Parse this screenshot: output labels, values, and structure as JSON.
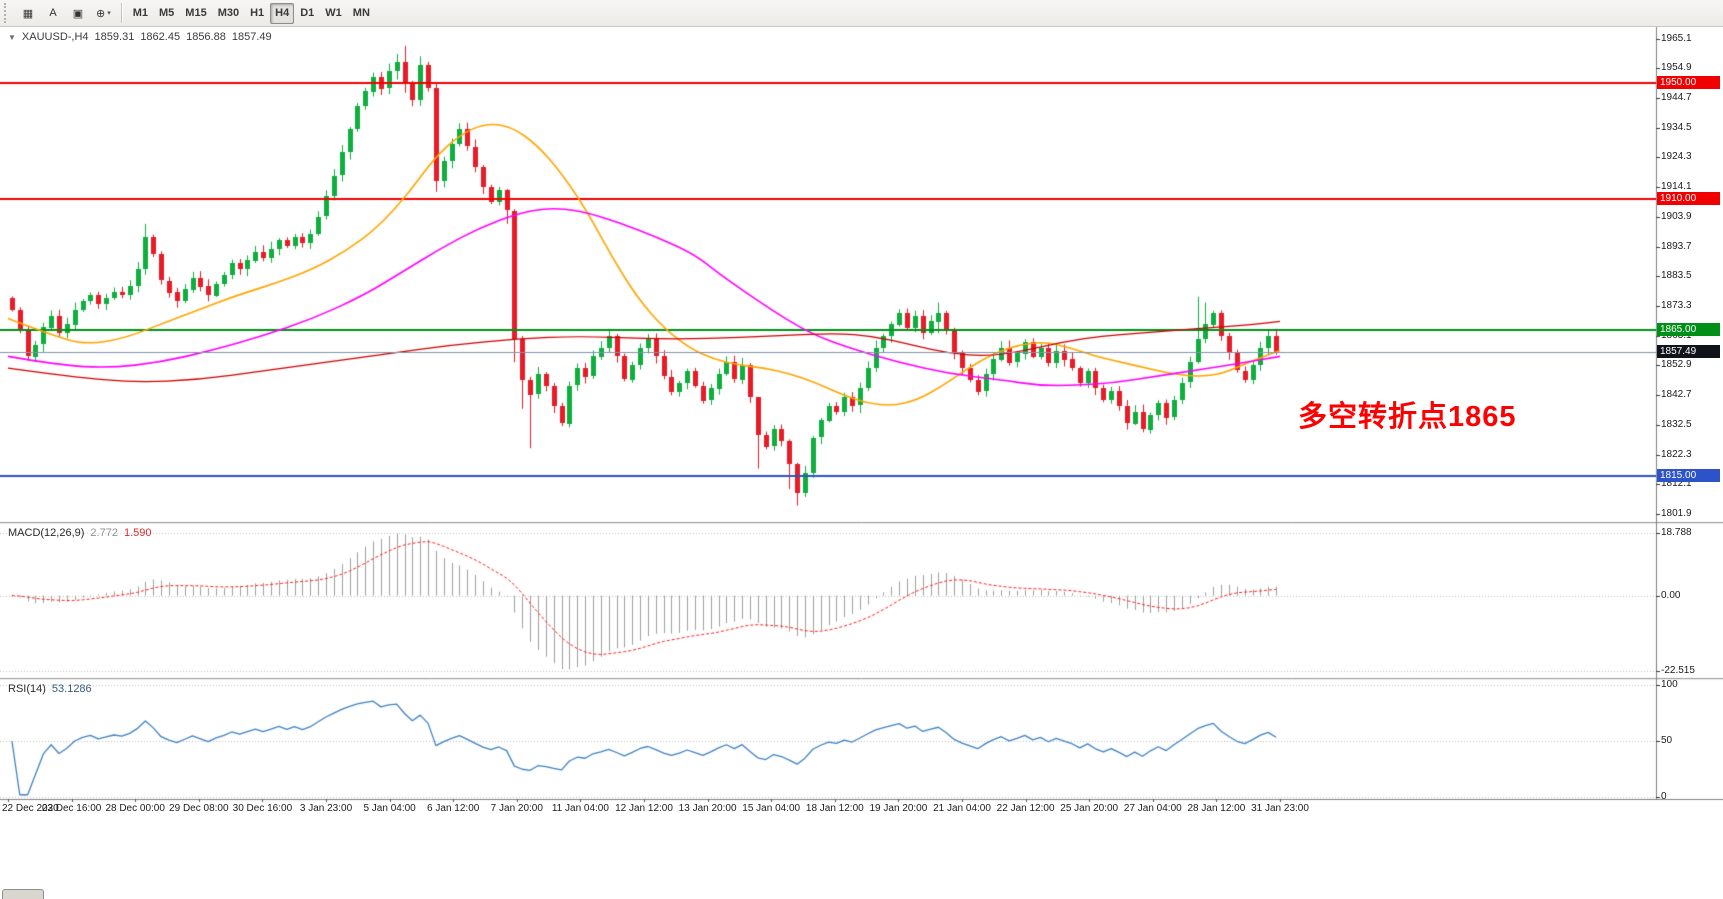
{
  "icons": {
    "collapse": "▼"
  },
  "toolbar": {
    "tools": [
      {
        "name": "chart-type-button",
        "glyph": "▦"
      },
      {
        "name": "text-annotation-button",
        "glyph": "A"
      },
      {
        "name": "object-frame-button",
        "glyph": "▣"
      },
      {
        "name": "cursor-tools-button",
        "glyph": "⊕",
        "caret": "▾"
      }
    ],
    "timeframes": [
      "M1",
      "M5",
      "M15",
      "M30",
      "H1",
      "H4",
      "D1",
      "W1",
      "MN"
    ],
    "active_timeframe": "H4"
  },
  "chart": {
    "title": {
      "symbol": "XAUUSD-,H4",
      "open": "1859.31",
      "high": "1862.45",
      "low": "1856.88",
      "close": "1857.49"
    },
    "annotation": {
      "text": "多空转折点1865",
      "color": "#ff0000"
    }
  },
  "macd_panel": {
    "name": "MACD(12,26,9)",
    "main": "2.772",
    "signal": "1.590",
    "axis": [
      "18.788",
      "0.00",
      "-22.515"
    ]
  },
  "rsi_panel": {
    "name": "RSI(14)",
    "value": "53.1286",
    "axis": [
      "100",
      "50",
      "0"
    ]
  },
  "colors": {
    "candle_up": "#0fae3f",
    "candle_down": "#e81c27",
    "macd_histogram": "#a0a0a0",
    "macd_signal": "#ff2020",
    "rsi_line": "#3e82c4",
    "bid_line": "#8194ad",
    "bid_label_bg": "#10131a",
    "annotation": "#ff0000"
  },
  "chart_data": {
    "type": "candlestick",
    "symbol": "XAUUSD",
    "timeframe": "H4",
    "first_open": 1876,
    "closes": [
      1872,
      1865,
      1856,
      1860,
      1866,
      1870,
      1864,
      1867,
      1872,
      1875,
      1877,
      1874,
      1876,
      1878,
      1877,
      1880,
      1886,
      1897,
      1891,
      1882,
      1878,
      1875,
      1879,
      1883,
      1880,
      1877,
      1881,
      1884,
      1888,
      1886,
      1889,
      1892,
      1890,
      1893,
      1896,
      1894,
      1897,
      1895,
      1898,
      1904,
      1911,
      1918,
      1926,
      1934,
      1942,
      1947,
      1952,
      1948,
      1954,
      1957,
      1950,
      1944,
      1956,
      1948,
      1916,
      1923,
      1929,
      1934,
      1928,
      1921,
      1914,
      1909,
      1913,
      1906,
      1862,
      1848,
      1843,
      1850,
      1846,
      1839,
      1833,
      1846,
      1852,
      1849,
      1856,
      1859,
      1863,
      1856,
      1848,
      1853,
      1859,
      1862,
      1856,
      1849,
      1844,
      1847,
      1851,
      1846,
      1841,
      1845,
      1850,
      1854,
      1848,
      1853,
      1842,
      1829,
      1825,
      1831,
      1827,
      1819,
      1809,
      1816,
      1828,
      1834,
      1839,
      1837,
      1842,
      1839,
      1845,
      1852,
      1859,
      1863,
      1867,
      1871,
      1866,
      1870,
      1864,
      1868,
      1871,
      1865,
      1857,
      1852,
      1848,
      1844,
      1850,
      1855,
      1859,
      1854,
      1857,
      1861,
      1856,
      1859,
      1854,
      1858,
      1855,
      1852,
      1847,
      1851,
      1845,
      1841,
      1844,
      1839,
      1833,
      1837,
      1831,
      1836,
      1840,
      1835,
      1841,
      1847,
      1854,
      1862,
      1867,
      1871,
      1863,
      1857,
      1851,
      1848,
      1853,
      1859,
      1863,
      1857.49
    ],
    "wick_overrides": {
      "17": [
        1901.5,
        1884
      ],
      "48": [
        1956.5,
        1946
      ],
      "49": [
        1959.8,
        1951
      ],
      "50": [
        1962.6,
        1946.5
      ],
      "52": [
        1959.0,
        1942
      ],
      "54": [
        1949.5,
        1912.5
      ],
      "63": [
        1913.5,
        1901.5
      ],
      "64": [
        1906.5,
        1854
      ],
      "65": [
        1863,
        1838
      ],
      "66": [
        1849,
        1824.5
      ],
      "95": [
        1831.5,
        1817.5
      ],
      "99": [
        1827.5,
        1810.5
      ],
      "100": [
        1819.5,
        1804.8
      ],
      "118": [
        1874.5,
        1864
      ],
      "151": [
        1876.5,
        1853.5
      ],
      "152": [
        1874.5,
        1860.5
      ]
    },
    "moving_averages": [
      {
        "name": "ma-fast",
        "color": "#FFA500",
        "points": [
          [
            0.0,
            1869
          ],
          [
            0.03,
            1864
          ],
          [
            0.06,
            1860
          ],
          [
            0.09,
            1862
          ],
          [
            0.12,
            1867
          ],
          [
            0.15,
            1872
          ],
          [
            0.18,
            1877
          ],
          [
            0.21,
            1881
          ],
          [
            0.24,
            1886
          ],
          [
            0.265,
            1892
          ],
          [
            0.29,
            1900
          ],
          [
            0.315,
            1912
          ],
          [
            0.335,
            1924
          ],
          [
            0.355,
            1932
          ],
          [
            0.375,
            1936
          ],
          [
            0.395,
            1935
          ],
          [
            0.415,
            1929
          ],
          [
            0.435,
            1919
          ],
          [
            0.455,
            1906
          ],
          [
            0.475,
            1890
          ],
          [
            0.495,
            1876
          ],
          [
            0.515,
            1866
          ],
          [
            0.535,
            1859
          ],
          [
            0.555,
            1855
          ],
          [
            0.575,
            1853
          ],
          [
            0.595,
            1852
          ],
          [
            0.615,
            1850
          ],
          [
            0.635,
            1847
          ],
          [
            0.655,
            1843
          ],
          [
            0.675,
            1840
          ],
          [
            0.695,
            1839
          ],
          [
            0.715,
            1841
          ],
          [
            0.735,
            1846
          ],
          [
            0.755,
            1852
          ],
          [
            0.775,
            1857
          ],
          [
            0.795,
            1860
          ],
          [
            0.815,
            1861
          ],
          [
            0.835,
            1859
          ],
          [
            0.855,
            1856
          ],
          [
            0.875,
            1854
          ],
          [
            0.895,
            1852
          ],
          [
            0.915,
            1850
          ],
          [
            0.935,
            1849
          ],
          [
            0.955,
            1850
          ],
          [
            0.975,
            1854
          ],
          [
            1.0,
            1858
          ]
        ]
      },
      {
        "name": "ma-mid",
        "color": "#FF00FF",
        "points": [
          [
            0.0,
            1856
          ],
          [
            0.04,
            1853
          ],
          [
            0.08,
            1852
          ],
          [
            0.12,
            1854
          ],
          [
            0.16,
            1858
          ],
          [
            0.2,
            1863
          ],
          [
            0.24,
            1869
          ],
          [
            0.28,
            1877
          ],
          [
            0.31,
            1885
          ],
          [
            0.34,
            1893
          ],
          [
            0.37,
            1900
          ],
          [
            0.4,
            1905
          ],
          [
            0.425,
            1907
          ],
          [
            0.45,
            1906
          ],
          [
            0.48,
            1902
          ],
          [
            0.51,
            1897
          ],
          [
            0.54,
            1891
          ],
          [
            0.56,
            1884
          ],
          [
            0.6,
            1872
          ],
          [
            0.63,
            1864
          ],
          [
            0.66,
            1859
          ],
          [
            0.7,
            1854
          ],
          [
            0.74,
            1850
          ],
          [
            0.78,
            1848
          ],
          [
            0.81,
            1846
          ],
          [
            0.84,
            1846
          ],
          [
            0.87,
            1847
          ],
          [
            0.9,
            1849
          ],
          [
            0.93,
            1851
          ],
          [
            0.96,
            1853
          ],
          [
            1.0,
            1856
          ]
        ]
      },
      {
        "name": "ma-slow",
        "color": "#D00000",
        "points": [
          [
            0.0,
            1852
          ],
          [
            0.05,
            1849
          ],
          [
            0.1,
            1847
          ],
          [
            0.15,
            1848
          ],
          [
            0.2,
            1851
          ],
          [
            0.25,
            1854
          ],
          [
            0.3,
            1857
          ],
          [
            0.35,
            1860
          ],
          [
            0.4,
            1862
          ],
          [
            0.45,
            1863
          ],
          [
            0.5,
            1862
          ],
          [
            0.55,
            1862
          ],
          [
            0.6,
            1863
          ],
          [
            0.65,
            1864
          ],
          [
            0.68,
            1863
          ],
          [
            0.71,
            1860
          ],
          [
            0.74,
            1857
          ],
          [
            0.77,
            1856
          ],
          [
            0.8,
            1858
          ],
          [
            0.83,
            1861
          ],
          [
            0.86,
            1863
          ],
          [
            0.89,
            1864
          ],
          [
            0.92,
            1865
          ],
          [
            0.95,
            1866
          ],
          [
            0.98,
            1867
          ],
          [
            1.0,
            1868
          ]
        ]
      }
    ],
    "levels": [
      {
        "price": 1950.0,
        "label": "1950.00",
        "color": "#f00000"
      },
      {
        "price": 1910.0,
        "label": "1910.00",
        "color": "#f00000"
      },
      {
        "price": 1865.0,
        "label": "1865.00",
        "color": "#009018"
      },
      {
        "price": 1815.0,
        "label": "1815.00",
        "color": "#2e52c8"
      }
    ],
    "bid": {
      "price": 1857.49,
      "label": "1857.49"
    },
    "price_axis": {
      "ticks": [
        "1965.1",
        "1954.9",
        "1944.7",
        "1934.5",
        "1924.3",
        "1914.1",
        "1903.9",
        "1893.7",
        "1883.5",
        "1873.3",
        "1863.1",
        "1852.9",
        "1842.7",
        "1832.5",
        "1822.3",
        "1812.1",
        "1801.9"
      ]
    },
    "indicators": {
      "macd": {
        "params": [
          12,
          26,
          9
        ],
        "current_main": 2.772,
        "current_signal": 1.59,
        "axis_values": [
          18.788,
          0,
          -22.515
        ]
      },
      "rsi": {
        "period": 14,
        "current_value": 53.1286,
        "axis_values": [
          100,
          50,
          0
        ]
      }
    },
    "time_labels": [
      "22 Dec 2020",
      "23 Dec 16:00",
      "28 Dec 00:00",
      "29 Dec 08:00",
      "30 Dec 16:00",
      "3 Jan 23:00",
      "5 Jan 04:00",
      "6 Jan 12:00",
      "7 Jan 20:00",
      "11 Jan 04:00",
      "12 Jan 12:00",
      "13 Jan 20:00",
      "15 Jan 04:00",
      "18 Jan 12:00",
      "19 Jan 20:00",
      "21 Jan 04:00",
      "22 Jan 12:00",
      "25 Jan 20:00",
      "27 Jan 04:00",
      "28 Jan 12:00",
      "31 Jan 23:00"
    ]
  }
}
